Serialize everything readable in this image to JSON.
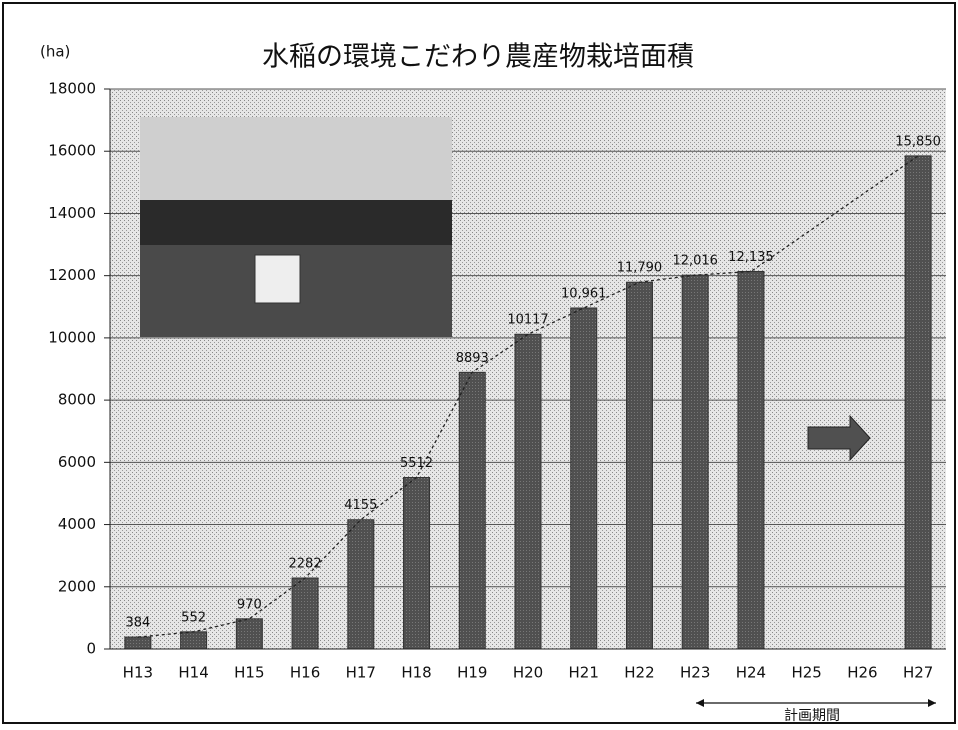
{
  "chart_data": {
    "type": "bar",
    "title": "水稲の環境こだわり農産物栽培面積",
    "y_axis_label": "(ha)",
    "annotation": "計画期間",
    "categories": [
      "H13",
      "H14",
      "H15",
      "H16",
      "H17",
      "H18",
      "H19",
      "H20",
      "H21",
      "H22",
      "H23",
      "H24",
      "H25",
      "H26",
      "H27"
    ],
    "values": [
      384,
      552,
      970,
      2282,
      4155,
      5512,
      8893,
      10117,
      10961,
      11790,
      12016,
      12135,
      null,
      null,
      15850
    ],
    "value_labels": [
      "384",
      "552",
      "970",
      "2282",
      "4155",
      "5512",
      "8893",
      "10117",
      "10,961",
      "11,790",
      "12,016",
      "12,135",
      null,
      null,
      "15,850"
    ],
    "color": "#505050",
    "ylim": [
      0,
      18000
    ],
    "yticks": [
      0,
      2000,
      4000,
      6000,
      8000,
      10000,
      12000,
      14000,
      16000,
      18000
    ],
    "grid": true
  }
}
